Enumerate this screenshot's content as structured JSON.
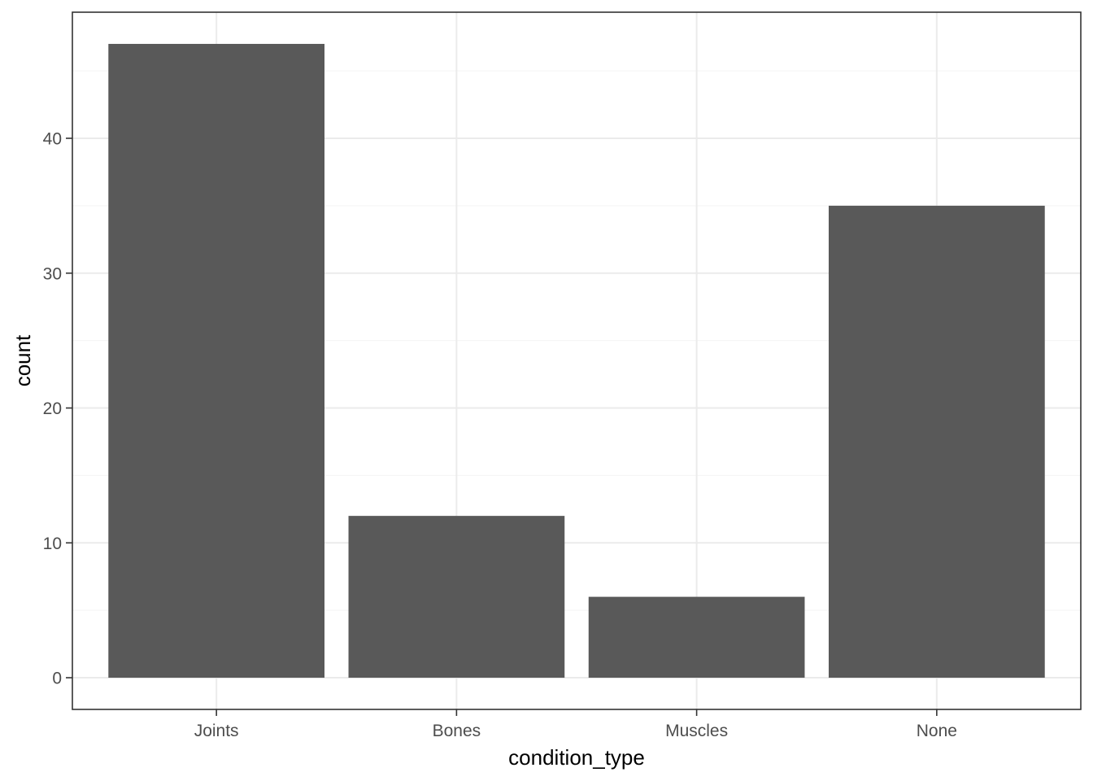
{
  "chart_data": {
    "type": "bar",
    "title": "",
    "xlabel": "condition_type",
    "ylabel": "count",
    "categories": [
      "Joints",
      "Bones",
      "Muscles",
      "None"
    ],
    "values": [
      47,
      12,
      6,
      35
    ],
    "ylim": [
      -2.35,
      49.35
    ],
    "yticks": [
      0,
      10,
      20,
      30,
      40
    ],
    "y_minor_ticks": [
      5,
      15,
      25,
      35,
      45
    ],
    "grid": true,
    "legend": "none",
    "colors": {
      "bar": "#595959",
      "grid_major": "#ebebeb",
      "grid_minor": "#f5f5f5",
      "panel_border": "#333333",
      "tick": "#333333",
      "tick_label": "#4d4d4d",
      "axis_title": "#000000",
      "background": "#ffffff"
    }
  }
}
